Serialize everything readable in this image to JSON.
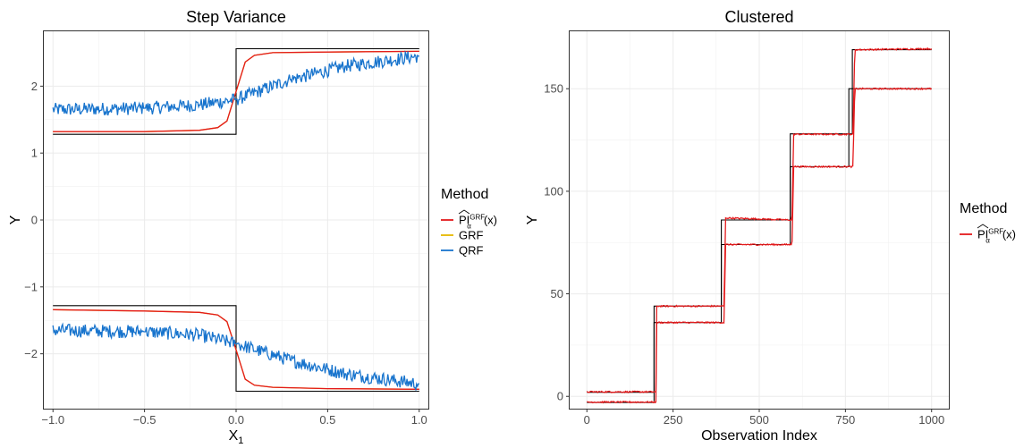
{
  "chart_data": [
    {
      "type": "line",
      "title": "Step Variance",
      "xlabel": "X",
      "xlabel_sub": "1",
      "ylabel": "Y",
      "xlim": [
        -1.05,
        1.05
      ],
      "ylim": [
        -2.82,
        2.82
      ],
      "xticks": [
        -1.0,
        -0.5,
        0.0,
        0.5,
        1.0
      ],
      "xtick_labels": [
        "−1.0",
        "−0.5",
        "0.0",
        "0.5",
        "1.0"
      ],
      "yticks": [
        -2,
        -1,
        0,
        1,
        2
      ],
      "ytick_labels": [
        "−2",
        "−1",
        "0",
        "1",
        "2"
      ],
      "grid": true,
      "legend": {
        "title": "Method",
        "placement": "right",
        "entries": [
          {
            "label": "PI",
            "sup": "GRF",
            "sub": "α",
            "suffix": "(x)",
            "color": "#e41a1c"
          },
          {
            "label": "GRF",
            "color": "#e6b800"
          },
          {
            "label": "QRF",
            "color": "#1874cd"
          }
        ]
      },
      "series": [
        {
          "role": "truth",
          "color": "#000000",
          "segments": [
            {
              "x": [
                -1.0,
                0.0,
                0.0,
                1.0
              ],
              "y": [
                1.28,
                1.28,
                2.56,
                2.56
              ]
            },
            {
              "x": [
                -1.0,
                0.0,
                0.0,
                1.0
              ],
              "y": [
                -1.28,
                -1.28,
                -2.56,
                -2.56
              ]
            }
          ]
        },
        {
          "name": "GRF",
          "color": "#e6b800",
          "segments": [
            {
              "x": [
                -1.0,
                -0.5,
                -0.2,
                -0.1,
                -0.05,
                0.0,
                0.05,
                0.1,
                0.2,
                0.5,
                1.0
              ],
              "y": [
                1.32,
                1.32,
                1.34,
                1.38,
                1.48,
                1.92,
                2.36,
                2.46,
                2.5,
                2.51,
                2.52
              ]
            },
            {
              "x": [
                -1.0,
                -0.5,
                -0.2,
                -0.1,
                -0.05,
                0.0,
                0.05,
                0.1,
                0.2,
                0.5,
                1.0
              ],
              "y": [
                -1.34,
                -1.36,
                -1.38,
                -1.42,
                -1.52,
                -1.94,
                -2.38,
                -2.47,
                -2.5,
                -2.52,
                -2.53
              ]
            }
          ]
        },
        {
          "name": "PI",
          "color": "#e41a1c",
          "segments": [
            {
              "x": [
                -1.0,
                -0.5,
                -0.2,
                -0.1,
                -0.05,
                0.0,
                0.05,
                0.1,
                0.2,
                0.5,
                1.0
              ],
              "y": [
                1.32,
                1.32,
                1.34,
                1.38,
                1.48,
                1.92,
                2.36,
                2.46,
                2.5,
                2.51,
                2.52
              ]
            },
            {
              "x": [
                -1.0,
                -0.5,
                -0.2,
                -0.1,
                -0.05,
                0.0,
                0.05,
                0.1,
                0.2,
                0.5,
                1.0
              ],
              "y": [
                -1.34,
                -1.36,
                -1.38,
                -1.42,
                -1.52,
                -1.94,
                -2.38,
                -2.47,
                -2.5,
                -2.52,
                -2.53
              ]
            }
          ]
        },
        {
          "name": "QRF",
          "color": "#1874cd",
          "noise": 0.1,
          "segments": [
            {
              "x": [
                -1.0,
                -0.5,
                -0.2,
                0.0,
                0.3,
                0.6,
                1.0
              ],
              "y": [
                1.65,
                1.67,
                1.72,
                1.8,
                2.1,
                2.3,
                2.45
              ]
            },
            {
              "x": [
                -1.0,
                -0.5,
                -0.2,
                0.0,
                0.3,
                0.6,
                1.0
              ],
              "y": [
                -1.65,
                -1.67,
                -1.72,
                -1.85,
                -2.1,
                -2.3,
                -2.45
              ]
            }
          ]
        }
      ]
    },
    {
      "type": "line",
      "title": "Clustered",
      "xlabel": "Observation Index",
      "ylabel": "Y",
      "xlim": [
        -50,
        1050
      ],
      "ylim": [
        -6,
        178
      ],
      "xticks": [
        0,
        250,
        500,
        750,
        1000
      ],
      "xtick_labels": [
        "0",
        "250",
        "500",
        "750",
        "1000"
      ],
      "yticks": [
        0,
        50,
        100,
        150
      ],
      "ytick_labels": [
        "0",
        "50",
        "100",
        "150"
      ],
      "grid": true,
      "legend": {
        "title": "Method",
        "placement": "right",
        "entries": [
          {
            "label": "PI",
            "sup": "GRF",
            "sub": "α",
            "suffix": "(x)",
            "color": "#e41a1c"
          }
        ]
      },
      "series": [
        {
          "role": "truth",
          "color": "#000000",
          "segments": [
            {
              "x": [
                0,
                195,
                195,
                390,
                390,
                590,
                590,
                770,
                770,
                1000
              ],
              "y": [
                2,
                2,
                44,
                44,
                86,
                86,
                128,
                128,
                169,
                169
              ]
            },
            {
              "x": [
                0,
                195,
                195,
                390,
                390,
                590,
                590,
                760,
                760,
                1000
              ],
              "y": [
                -3,
                -3,
                36,
                36,
                74,
                74,
                112,
                112,
                150,
                150
              ]
            }
          ]
        },
        {
          "name": "PI",
          "color": "#e41a1c",
          "noise": 0.35,
          "segments": [
            {
              "x": [
                0,
                200,
                202,
                398,
                402,
                595,
                600,
                772,
                777,
                1000
              ],
              "y": [
                2.2,
                2.2,
                44,
                44,
                87,
                86,
                127.8,
                127.8,
                169,
                169.5
              ]
            },
            {
              "x": [
                0,
                200,
                202,
                398,
                402,
                595,
                600,
                772,
                777,
                1000
              ],
              "y": [
                -2.8,
                -2.8,
                36,
                36,
                74,
                74,
                112,
                112,
                150,
                150
              ]
            }
          ]
        }
      ]
    }
  ]
}
